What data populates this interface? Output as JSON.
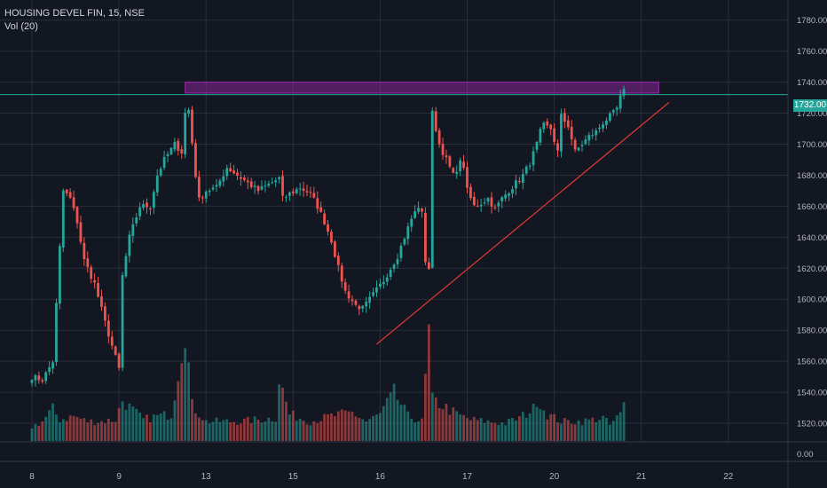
{
  "header": {
    "title": "HOUSING DEVEL FIN, 15, NSE",
    "volume_label": "Vol (20)"
  },
  "current_price_label": "1732.00",
  "colors": {
    "background": "#131722",
    "grid": "#2a2e39",
    "text": "#b2b5be",
    "up": "#26a69a",
    "down": "#ef5350",
    "resistance_zone": "#9c27b0",
    "trendline": "#e53935",
    "price_line": "#26a69a"
  },
  "chart_data": {
    "type": "candlestick",
    "title": "HOUSING DEVEL FIN, 15, NSE",
    "ylim": [
      1508,
      1793
    ],
    "y_ticks": [
      "1780.00",
      "1760.00",
      "1740.00",
      "1720.00",
      "1700.00",
      "1680.00",
      "1660.00",
      "1640.00",
      "1620.00",
      "1600.00",
      "1580.00",
      "1560.00",
      "1540.00",
      "1520.00"
    ],
    "volume_axis_label": "0.00",
    "x_labels": [
      {
        "label": "8",
        "bar": 0
      },
      {
        "label": "9",
        "bar": 25
      },
      {
        "label": "13",
        "bar": 50
      },
      {
        "label": "15",
        "bar": 75
      },
      {
        "label": "16",
        "bar": 100
      },
      {
        "label": "17",
        "bar": 125
      },
      {
        "label": "20",
        "bar": 150
      },
      {
        "label": "21",
        "bar": 175
      },
      {
        "label": "22",
        "bar": 200
      }
    ],
    "current_price": 1732,
    "resistance_zone": {
      "bar_start": 44,
      "bar_end": 180,
      "price_low": 1733,
      "price_high": 1740
    },
    "trendline": {
      "bar_start": 99,
      "price_start": 1571,
      "bar_end": 183,
      "price_end": 1727
    },
    "ohlc_anchors": [
      [
        0,
        1550
      ],
      [
        3,
        1548
      ],
      [
        6,
        1560
      ],
      [
        9,
        1670
      ],
      [
        11,
        1665
      ],
      [
        13,
        1650
      ],
      [
        15,
        1625
      ],
      [
        18,
        1610
      ],
      [
        21,
        1585
      ],
      [
        23,
        1570
      ],
      [
        25,
        1555
      ],
      [
        26,
        1615
      ],
      [
        28,
        1640
      ],
      [
        31,
        1660
      ],
      [
        34,
        1660
      ],
      [
        36,
        1680
      ],
      [
        38,
        1690
      ],
      [
        41,
        1700
      ],
      [
        43,
        1695
      ],
      [
        44,
        1720
      ],
      [
        45,
        1722
      ],
      [
        47,
        1680
      ],
      [
        48,
        1664
      ],
      [
        50,
        1670
      ],
      [
        53,
        1672
      ],
      [
        56,
        1685
      ],
      [
        59,
        1680
      ],
      [
        62,
        1675
      ],
      [
        65,
        1670
      ],
      [
        71,
        1678
      ],
      [
        72,
        1665
      ],
      [
        74,
        1668
      ],
      [
        77,
        1672
      ],
      [
        80,
        1668
      ],
      [
        82,
        1660
      ],
      [
        84,
        1650
      ],
      [
        86,
        1638
      ],
      [
        88,
        1620
      ],
      [
        90,
        1605
      ],
      [
        93,
        1596
      ],
      [
        95,
        1594
      ],
      [
        97,
        1600
      ],
      [
        99,
        1606
      ],
      [
        101,
        1612
      ],
      [
        103,
        1620
      ],
      [
        105,
        1628
      ],
      [
        107,
        1640
      ],
      [
        109,
        1652
      ],
      [
        111,
        1660
      ],
      [
        112,
        1655
      ],
      [
        113,
        1625
      ],
      [
        114,
        1620
      ],
      [
        115,
        1720
      ],
      [
        117,
        1700
      ],
      [
        119,
        1690
      ],
      [
        121,
        1680
      ],
      [
        123,
        1688
      ],
      [
        124,
        1686
      ],
      [
        125,
        1670
      ],
      [
        127,
        1660
      ],
      [
        129,
        1662
      ],
      [
        131,
        1665
      ],
      [
        133,
        1658
      ],
      [
        135,
        1665
      ],
      [
        137,
        1670
      ],
      [
        139,
        1675
      ],
      [
        141,
        1680
      ],
      [
        143,
        1688
      ],
      [
        145,
        1700
      ],
      [
        146,
        1708
      ],
      [
        147,
        1712
      ],
      [
        149,
        1710
      ],
      [
        151,
        1695
      ],
      [
        152,
        1718
      ],
      [
        154,
        1712
      ],
      [
        156,
        1695
      ],
      [
        158,
        1700
      ],
      [
        160,
        1705
      ],
      [
        162,
        1708
      ],
      [
        164,
        1714
      ],
      [
        166,
        1718
      ],
      [
        167,
        1720
      ],
      [
        168,
        1723
      ],
      [
        169,
        1730
      ],
      [
        170,
        1734
      ]
    ],
    "volume_anchors": [
      [
        0,
        16
      ],
      [
        3,
        22
      ],
      [
        6,
        36
      ],
      [
        8,
        24
      ],
      [
        12,
        28
      ],
      [
        16,
        22
      ],
      [
        20,
        22
      ],
      [
        24,
        24
      ],
      [
        26,
        46
      ],
      [
        28,
        38
      ],
      [
        32,
        24
      ],
      [
        36,
        28
      ],
      [
        40,
        30
      ],
      [
        44,
        130
      ],
      [
        46,
        40
      ],
      [
        50,
        22
      ],
      [
        60,
        22
      ],
      [
        70,
        26
      ],
      [
        71,
        70
      ],
      [
        74,
        30
      ],
      [
        80,
        22
      ],
      [
        86,
        28
      ],
      [
        92,
        32
      ],
      [
        96,
        22
      ],
      [
        100,
        30
      ],
      [
        104,
        54
      ],
      [
        108,
        28
      ],
      [
        112,
        22
      ],
      [
        113,
        70
      ],
      [
        114,
        120
      ],
      [
        115,
        46
      ],
      [
        118,
        40
      ],
      [
        122,
        30
      ],
      [
        126,
        24
      ],
      [
        130,
        22
      ],
      [
        136,
        20
      ],
      [
        140,
        26
      ],
      [
        144,
        36
      ],
      [
        145,
        48
      ],
      [
        148,
        30
      ],
      [
        152,
        22
      ],
      [
        158,
        22
      ],
      [
        164,
        26
      ],
      [
        166,
        18
      ],
      [
        169,
        30
      ],
      [
        170,
        40
      ]
    ]
  }
}
